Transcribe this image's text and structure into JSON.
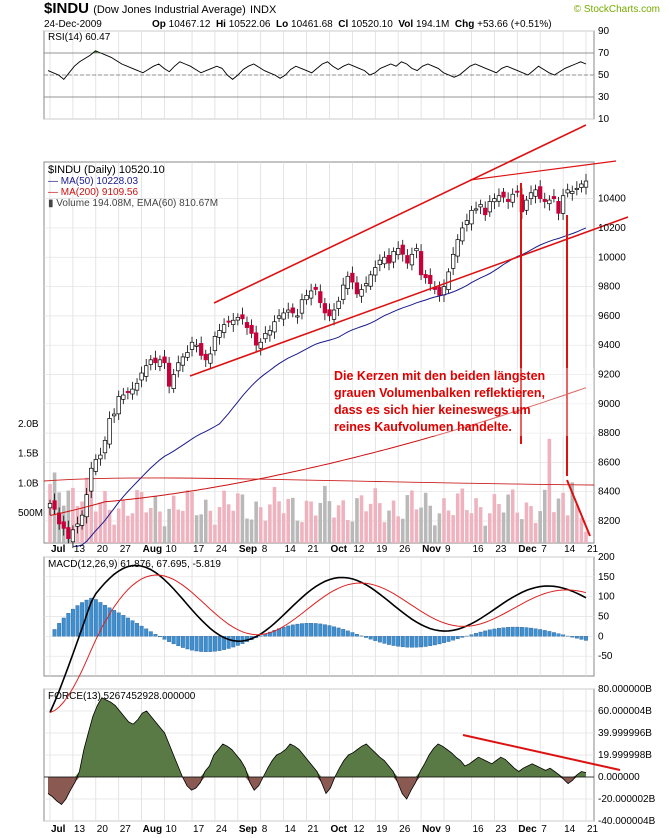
{
  "header": {
    "symbol": "$INDU",
    "name": "(Dow Jones Industrial Average)",
    "exchange": "INDX",
    "date": "24-Dec-2009",
    "watermark": "© StockCharts.com",
    "quote": {
      "op_label": "Op",
      "op": "10467.12",
      "hi_label": "Hi",
      "hi": "10522.06",
      "lo_label": "Lo",
      "lo": "10461.68",
      "cl_label": "Cl",
      "cl": "10520.10",
      "vol_label": "Vol",
      "vol": "194.1M",
      "chg_label": "Chg",
      "chg": "+53.66 (+0.51%)"
    }
  },
  "colors": {
    "up_volume": "#efb3bf",
    "down_volume": "#b9b9b9",
    "candle_down": "#c8003a",
    "ma50": "#1a1a8c",
    "ma200": "#cc1111",
    "trendline": "#dd1111",
    "rsi_fill": "#4f8a3c",
    "force_pos": "#5a7a45",
    "force_neg": "#8a5a52",
    "macd_hist": "#3c8fd0"
  },
  "annotation": {
    "line1": "Die Kerzen mit den beiden längsten",
    "line2": "grauen Volumenbalken reflektieren,",
    "line3": "dass es sich hier keineswegs um",
    "line4": "reines Kaufvolumen handelte."
  },
  "chart_data": {
    "type": "candlestick",
    "x_tick_labels": [
      "Jul",
      "13",
      "20",
      "27",
      "Aug",
      "10",
      "17",
      "24",
      "Sep",
      "8",
      "14",
      "21",
      "Oct",
      "12",
      "19",
      "26",
      "Nov",
      "9",
      "16",
      "23",
      "Dec",
      "7",
      "14",
      "21"
    ],
    "rsi": {
      "label": "RSI(14) 60.47",
      "ylim": [
        10,
        90
      ],
      "ticks": [
        "90",
        "70",
        "50",
        "30",
        "10"
      ],
      "reference_lines": [
        70,
        50,
        30
      ],
      "values": [
        54,
        52,
        50,
        46,
        52,
        58,
        62,
        65,
        68,
        72,
        70,
        68,
        66,
        63,
        60,
        58,
        56,
        54,
        52,
        55,
        58,
        60,
        56,
        53,
        58,
        62,
        60,
        58,
        55,
        52,
        54,
        56,
        58,
        56,
        50,
        46,
        50,
        55,
        58,
        60,
        57,
        54,
        52,
        50,
        47,
        50,
        55,
        58,
        56,
        54,
        52,
        56,
        60,
        62,
        58,
        55,
        58,
        60,
        58,
        56,
        54,
        50,
        52,
        56,
        58,
        60,
        58,
        62,
        60,
        56,
        54,
        58,
        60,
        58,
        56,
        52,
        50,
        48,
        50,
        54,
        58,
        60,
        58,
        56,
        54,
        52,
        56,
        58,
        56,
        54,
        52,
        50,
        54,
        58,
        55,
        52,
        50,
        53,
        56,
        58,
        60,
        62,
        60
      ]
    },
    "price": {
      "label": "$INDU (Daily) 10520.10",
      "ma50_label": "MA(50) 10228.03",
      "ma200_label": "MA(200) 9109.56",
      "volume_label": "Volume 194.08M, EMA(60) 810.67M",
      "ylim": [
        8050,
        10650
      ],
      "ticks": [
        "10400",
        "10200",
        "10000",
        "9800",
        "9600",
        "9400",
        "9200",
        "9000",
        "8800",
        "8600",
        "8400",
        "8200"
      ],
      "close": [
        8320,
        8280,
        8180,
        8150,
        8080,
        8140,
        8180,
        8240,
        8380,
        8560,
        8620,
        8650,
        8750,
        8900,
        8930,
        9050,
        9060,
        9080,
        9100,
        9140,
        9210,
        9260,
        9300,
        9280,
        9300,
        9280,
        9120,
        9200,
        9280,
        9320,
        9350,
        9420,
        9400,
        9330,
        9300,
        9340,
        9460,
        9500,
        9540,
        9560,
        9570,
        9590,
        9580,
        9520,
        9480,
        9400,
        9420,
        9480,
        9500,
        9560,
        9600,
        9620,
        9640,
        9620,
        9600,
        9710,
        9740,
        9770,
        9780,
        9690,
        9620,
        9600,
        9640,
        9700,
        9810,
        9870,
        9830,
        9750,
        9780,
        9820,
        9880,
        9930,
        9980,
        10000,
        9960,
        10040,
        10060,
        10020,
        9960,
        10020,
        10060,
        9880,
        9860,
        9820,
        9780,
        9740,
        9800,
        9900,
        10020,
        10120,
        10200,
        10250,
        10320,
        10330,
        10360,
        10290,
        10380,
        10400,
        10420,
        10410,
        10380,
        10430,
        10450,
        10310,
        10390,
        10440,
        10460,
        10400,
        10380,
        10390,
        10400,
        10300,
        10420,
        10460,
        10450,
        10470,
        10500,
        10520
      ]
    },
    "volume": {
      "ticks": [
        "2.0B",
        "1.5B",
        "1.0B",
        "500M"
      ],
      "ylim": [
        0,
        2100
      ]
    },
    "macd": {
      "label": "MACD(12,26,9) 61.876, 67.695, -5.819",
      "ylim": [
        -100,
        200
      ],
      "ticks": [
        "200",
        "150",
        "100",
        "50",
        "0",
        "-50"
      ]
    },
    "force": {
      "label": "FORCE(13) 5267452928.000000",
      "ylim": [
        -40,
        80
      ],
      "ticks": [
        "80.000000B",
        "60.000004B",
        "39.999996B",
        "19.999998B",
        "0.000000",
        "-20.000002B",
        "-40.000004B"
      ],
      "values": [
        -15,
        -18,
        -22,
        -25,
        -20,
        -12,
        -5,
        5,
        25,
        40,
        55,
        65,
        72,
        70,
        68,
        65,
        60,
        55,
        50,
        48,
        52,
        58,
        60,
        55,
        50,
        45,
        40,
        30,
        20,
        10,
        0,
        -8,
        -12,
        -10,
        -5,
        5,
        10,
        20,
        25,
        30,
        28,
        25,
        20,
        15,
        8,
        -5,
        -12,
        -8,
        0,
        8,
        15,
        20,
        22,
        25,
        30,
        28,
        25,
        20,
        15,
        10,
        5,
        -5,
        -15,
        -10,
        0,
        8,
        15,
        20,
        22,
        25,
        28,
        30,
        26,
        22,
        18,
        15,
        10,
        5,
        -5,
        -15,
        -20,
        -12,
        -5,
        5,
        12,
        20,
        26,
        30,
        28,
        25,
        22,
        18,
        15,
        10,
        12,
        15,
        18,
        16,
        14,
        12,
        15,
        18,
        16,
        12,
        8,
        5,
        8,
        10,
        12,
        10,
        8,
        6,
        8,
        5,
        2,
        -2,
        -6,
        -3,
        2,
        5,
        4
      ]
    }
  }
}
